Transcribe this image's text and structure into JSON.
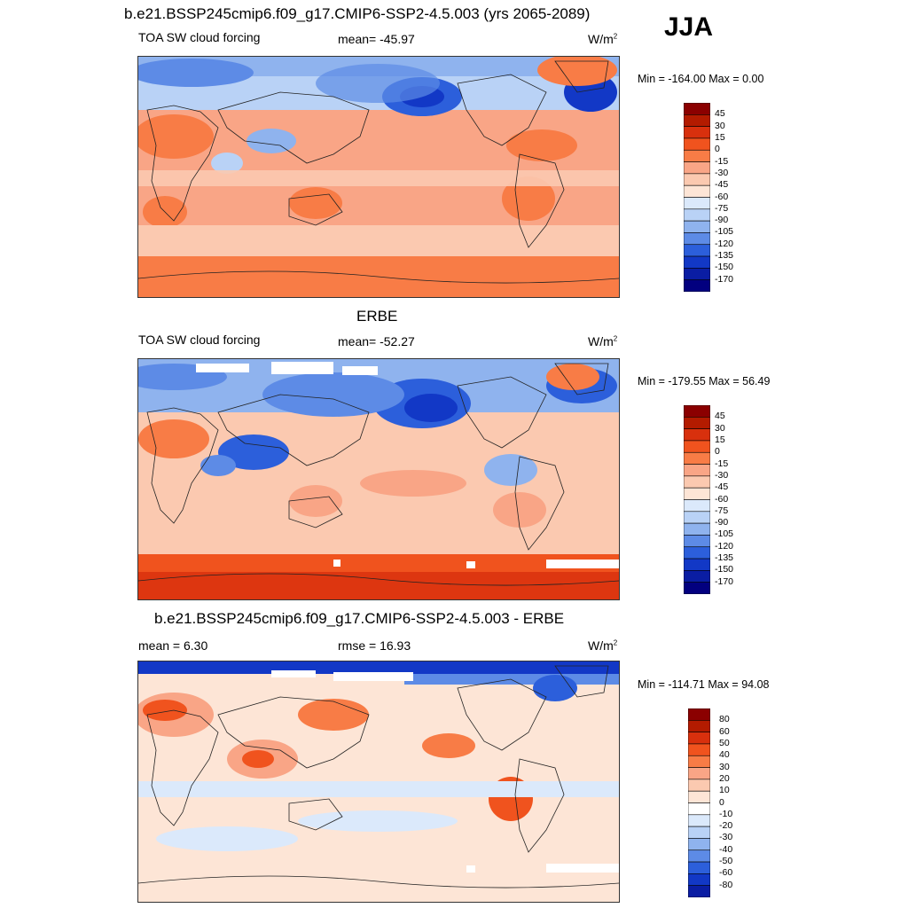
{
  "season": "JJA",
  "panels": [
    {
      "title": "b.e21.BSSP245cmip6.f09_g17.CMIP6-SSP2-4.5.003 (yrs 2065-2089)",
      "left_label": "TOA SW cloud forcing",
      "center_label": "mean= -45.97",
      "units": "W/m",
      "units_sup": "2",
      "minmax": "Min = -164.00 Max =   0.00",
      "colorbar_labels": [
        "45",
        "30",
        "15",
        "0",
        "-15",
        "-30",
        "-45",
        "-60",
        "-75",
        "-90",
        "-105",
        "-120",
        "-135",
        "-150",
        "-170"
      ]
    },
    {
      "title": "ERBE",
      "left_label": "TOA SW cloud forcing",
      "center_label": "mean= -52.27",
      "units": "W/m",
      "units_sup": "2",
      "minmax": "Min = -179.55 Max =  56.49",
      "colorbar_labels": [
        "45",
        "30",
        "15",
        "0",
        "-15",
        "-30",
        "-45",
        "-60",
        "-75",
        "-90",
        "-105",
        "-120",
        "-135",
        "-150",
        "-170"
      ]
    },
    {
      "title": "b.e21.BSSP245cmip6.f09_g17.CMIP6-SSP2-4.5.003 - ERBE",
      "left_label": "mean =   6.30",
      "center_label": "rmse =  16.93",
      "units": "W/m",
      "units_sup": "2",
      "minmax": "Min = -114.71 Max =  94.08",
      "colorbar_labels": [
        "80",
        "60",
        "50",
        "40",
        "30",
        "20",
        "10",
        "0",
        "-10",
        "-20",
        "-30",
        "-40",
        "-50",
        "-60",
        "-80"
      ]
    }
  ],
  "colors": {
    "model_scale": [
      "#8b0000",
      "#b31b00",
      "#d8300d",
      "#f0531e",
      "#f87c46",
      "#f9a586",
      "#fbc9b0",
      "#fde5d6",
      "#dbe9fb",
      "#b9d2f6",
      "#8fb3ee",
      "#5d8be6",
      "#2c5fdb",
      "#1238c6",
      "#0a1da3",
      "#02007f"
    ],
    "diff_scale": [
      "#8b0000",
      "#b31b00",
      "#d8300d",
      "#f0531e",
      "#f87c46",
      "#f9a586",
      "#fbc9b0",
      "#fde5d6",
      "#ffffff",
      "#dbe9fb",
      "#b9d2f6",
      "#8fb3ee",
      "#5d8be6",
      "#2c5fdb",
      "#1238c6",
      "#0a1da3",
      "#02007f"
    ]
  },
  "chart_data": [
    {
      "type": "heatmap",
      "title": "b.e21.BSSP245cmip6.f09_g17.CMIP6-SSP2-4.5.003 (yrs 2065-2089)",
      "variable": "TOA SW cloud forcing",
      "units": "W/m2",
      "mean": -45.97,
      "min": -164.0,
      "max": 0.0,
      "levels": [
        45,
        30,
        15,
        0,
        -15,
        -30,
        -45,
        -60,
        -75,
        -90,
        -105,
        -120,
        -135,
        -150,
        -170
      ]
    },
    {
      "type": "heatmap",
      "title": "ERBE",
      "variable": "TOA SW cloud forcing",
      "units": "W/m2",
      "mean": -52.27,
      "min": -179.55,
      "max": 56.49,
      "levels": [
        45,
        30,
        15,
        0,
        -15,
        -30,
        -45,
        -60,
        -75,
        -90,
        -105,
        -120,
        -135,
        -150,
        -170
      ]
    },
    {
      "type": "heatmap",
      "title": "b.e21.BSSP245cmip6.f09_g17.CMIP6-SSP2-4.5.003 - ERBE",
      "variable": "difference",
      "units": "W/m2",
      "mean": 6.3,
      "rmse": 16.93,
      "min": -114.71,
      "max": 94.08,
      "levels": [
        80,
        60,
        50,
        40,
        30,
        20,
        10,
        0,
        -10,
        -20,
        -30,
        -40,
        -50,
        -60,
        -80
      ]
    }
  ]
}
